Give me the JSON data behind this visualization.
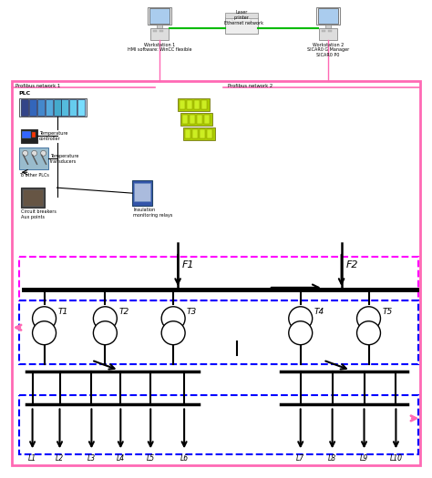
{
  "fig_width": 4.74,
  "fig_height": 5.25,
  "dpi": 100,
  "bg_color": "#ffffff",
  "pink": "#FF69B4",
  "magenta": "#FF00FF",
  "blue": "#0000FF",
  "black": "#000000",
  "green_line": "#00BB00",
  "bus_labels": [
    "L1",
    "L2",
    "L3",
    "L4",
    "L5",
    "L6",
    "L7",
    "L8",
    "L9",
    "L10"
  ],
  "transformer_labels": [
    "T1",
    "T2",
    "T3",
    "T4",
    "T5"
  ],
  "feeder_labels": [
    "F1",
    "F2"
  ],
  "ws1_label": "Workstation 1\nHMI software: WinCC flexible",
  "ws2_label": "Workstation 2\nSICAR0 G Manager\nSICAR0 P0",
  "profibus1_label": "Profibus network 1",
  "profibus2_label": "Profibus network 2",
  "ethernet_label": "Ethernet network",
  "laser_label": "Laser\nprinter",
  "plc_label": "PLC",
  "tc_label": "Temperature\ncontroller",
  "tt_label": "Temperature\ntransducers",
  "toplcs_label": "To other PLCs",
  "cb_label": "Circuit breakers\nAux points",
  "imr_label": "Insulation\nmonitoring relays"
}
